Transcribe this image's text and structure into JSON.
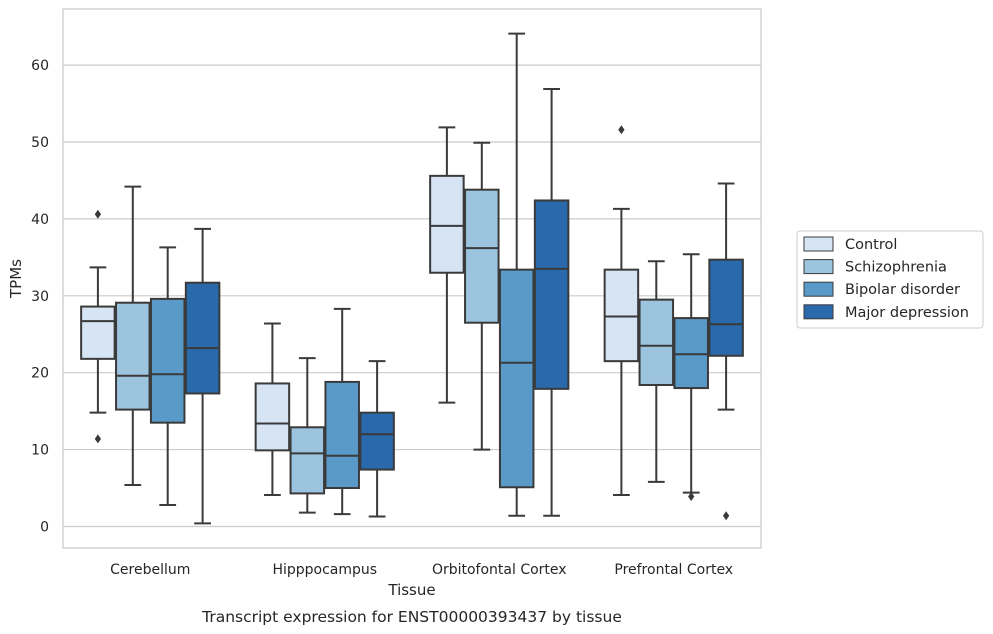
{
  "chart_data": {
    "type": "box",
    "title": "",
    "caption": "Transcript expression for ENST00000393437 by tissue",
    "xlabel": "Tissue",
    "ylabel": "TPMs",
    "ylim": [
      -2.8,
      67.3
    ],
    "yticks": [
      0,
      10,
      20,
      30,
      40,
      50,
      60
    ],
    "grid": "horizontal",
    "legend_position": "right",
    "categories": [
      "Cerebellum",
      "Hipppocampus",
      "Orbitofontal Cortex",
      "Prefrontal Cortex"
    ],
    "series": [
      {
        "name": "Control",
        "color": "#d6e4f3",
        "boxes": [
          {
            "whisker_low": 14.8,
            "q1": 21.8,
            "median": 26.7,
            "q3": 28.6,
            "whisker_high": 33.7,
            "outliers": [
              40.6,
              11.4
            ]
          },
          {
            "whisker_low": 4.1,
            "q1": 9.9,
            "median": 13.4,
            "q3": 18.6,
            "whisker_high": 26.4,
            "outliers": []
          },
          {
            "whisker_low": 16.1,
            "q1": 33.0,
            "median": 39.1,
            "q3": 45.6,
            "whisker_high": 51.9,
            "outliers": []
          },
          {
            "whisker_low": 4.1,
            "q1": 21.5,
            "median": 27.3,
            "q3": 33.4,
            "whisker_high": 41.3,
            "outliers": [
              51.6
            ]
          }
        ]
      },
      {
        "name": "Schizophrenia",
        "color": "#9dc4df",
        "boxes": [
          {
            "whisker_low": 5.4,
            "q1": 15.2,
            "median": 19.6,
            "q3": 29.1,
            "whisker_high": 44.2,
            "outliers": []
          },
          {
            "whisker_low": 1.8,
            "q1": 4.3,
            "median": 9.5,
            "q3": 12.9,
            "whisker_high": 21.9,
            "outliers": []
          },
          {
            "whisker_low": 10.0,
            "q1": 26.5,
            "median": 36.2,
            "q3": 43.8,
            "whisker_high": 49.9,
            "outliers": []
          },
          {
            "whisker_low": 5.8,
            "q1": 18.4,
            "median": 23.5,
            "q3": 29.5,
            "whisker_high": 34.5,
            "outliers": []
          }
        ]
      },
      {
        "name": "Bipolar disorder",
        "color": "#5a9ac8",
        "boxes": [
          {
            "whisker_low": 2.8,
            "q1": 13.5,
            "median": 19.8,
            "q3": 29.6,
            "whisker_high": 36.3,
            "outliers": []
          },
          {
            "whisker_low": 1.6,
            "q1": 5.0,
            "median": 9.2,
            "q3": 18.8,
            "whisker_high": 28.3,
            "outliers": []
          },
          {
            "whisker_low": 1.4,
            "q1": 5.1,
            "median": 21.3,
            "q3": 33.4,
            "whisker_high": 64.1,
            "outliers": []
          },
          {
            "whisker_low": 4.4,
            "q1": 18.0,
            "median": 22.4,
            "q3": 27.1,
            "whisker_high": 35.4,
            "outliers": [
              3.9
            ]
          }
        ]
      },
      {
        "name": "Major depression",
        "color": "#2a6aac",
        "boxes": [
          {
            "whisker_low": 0.4,
            "q1": 17.3,
            "median": 23.2,
            "q3": 31.7,
            "whisker_high": 38.7,
            "outliers": []
          },
          {
            "whisker_low": 1.3,
            "q1": 7.4,
            "median": 12.0,
            "q3": 14.8,
            "whisker_high": 21.5,
            "outliers": []
          },
          {
            "whisker_low": 1.4,
            "q1": 17.9,
            "median": 33.5,
            "q3": 42.4,
            "whisker_high": 56.9,
            "outliers": []
          },
          {
            "whisker_low": 15.2,
            "q1": 22.2,
            "median": 26.3,
            "q3": 34.7,
            "whisker_high": 44.6,
            "outliers": [
              1.4
            ]
          }
        ]
      }
    ]
  }
}
